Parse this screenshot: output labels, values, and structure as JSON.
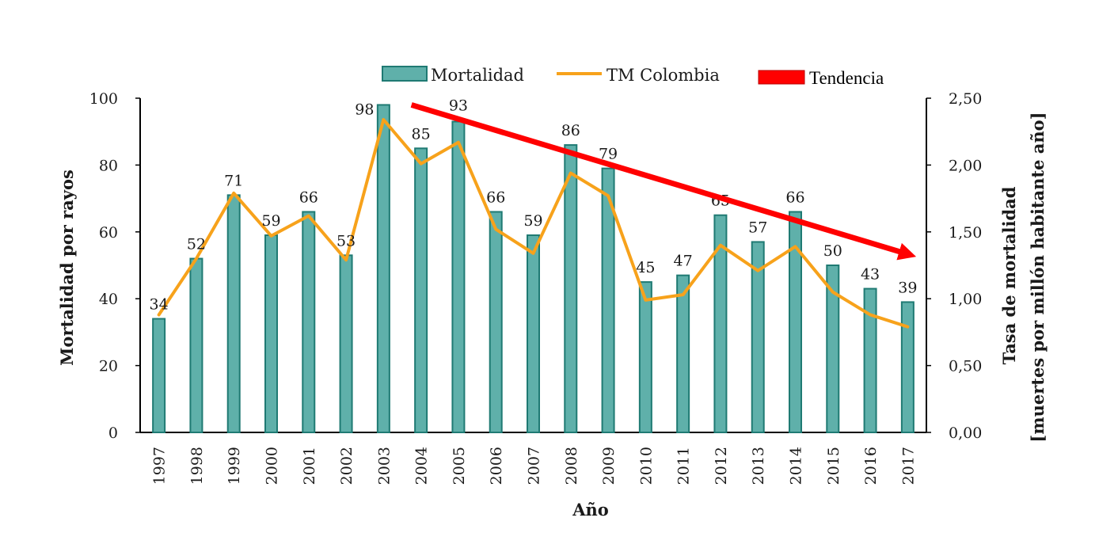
{
  "chart_data": {
    "type": "bar",
    "xlabel": "Año",
    "ylabel": "Mortalidad por rayos",
    "y2label_line1": "Tasa de mortalidad",
    "y2label_line2": "[muertes por millón habitante año]",
    "ylim": [
      0,
      100
    ],
    "y2lim": [
      0,
      2.5
    ],
    "yticks": [
      "0",
      "20",
      "40",
      "60",
      "80",
      "100"
    ],
    "y2ticks": [
      "0,00",
      "0,50",
      "1,00",
      "1,50",
      "2,00",
      "2,50"
    ],
    "categories": [
      "1997",
      "1998",
      "1999",
      "2000",
      "2001",
      "2002",
      "2003",
      "2004",
      "2005",
      "2006",
      "2007",
      "2008",
      "2009",
      "2010",
      "2011",
      "2012",
      "2013",
      "2014",
      "2015",
      "2016",
      "2017"
    ],
    "series": [
      {
        "name": "Mortalidad",
        "type": "bar",
        "axis": "left",
        "color": "#5fb0aa",
        "edge_color": "#1f7a73",
        "values": [
          34,
          52,
          71,
          59,
          66,
          53,
          98,
          85,
          93,
          66,
          59,
          86,
          79,
          45,
          47,
          65,
          57,
          66,
          50,
          43,
          39
        ],
        "labels": [
          "34",
          "52",
          "71",
          "59",
          "66",
          "53",
          "98",
          "85",
          "93",
          "66",
          "59",
          "86",
          "79",
          "45",
          "47",
          "65",
          "57",
          "66",
          "50",
          "43",
          "39"
        ]
      },
      {
        "name": "TM Colombia",
        "type": "line",
        "axis": "right",
        "color": "#f7a21b",
        "values": [
          0.88,
          1.3,
          1.79,
          1.47,
          1.62,
          1.29,
          2.34,
          2.01,
          2.17,
          1.52,
          1.34,
          1.94,
          1.77,
          0.99,
          1.03,
          1.4,
          1.21,
          1.39,
          1.05,
          0.88,
          0.79
        ]
      }
    ],
    "trend": {
      "name": "Tendencia",
      "color": "#ff0000",
      "from": {
        "x": "2004",
        "y": 98
      },
      "to": {
        "x": "2017",
        "y": 53
      }
    },
    "legend_position": "top",
    "grid": false
  }
}
